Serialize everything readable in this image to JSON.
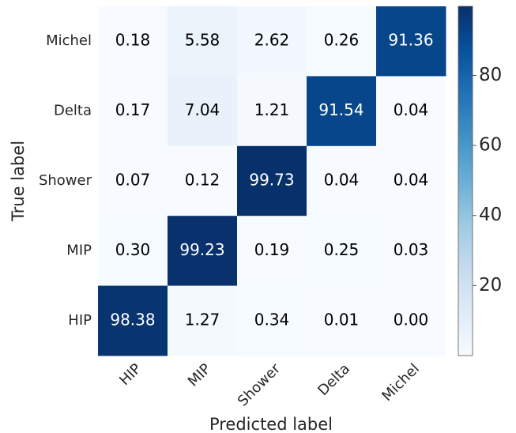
{
  "chart_data": {
    "type": "heatmap",
    "xlabel": "Predicted label",
    "ylabel": "True label",
    "x_categories": [
      "HIP",
      "MIP",
      "Shower",
      "Delta",
      "Michel"
    ],
    "y_categories": [
      "Michel",
      "Delta",
      "Shower",
      "MIP",
      "HIP"
    ],
    "values": [
      [
        0.18,
        5.58,
        2.62,
        0.26,
        91.36
      ],
      [
        0.17,
        7.04,
        1.21,
        91.54,
        0.04
      ],
      [
        0.07,
        0.12,
        99.73,
        0.04,
        0.04
      ],
      [
        0.3,
        99.23,
        0.19,
        0.25,
        0.03
      ],
      [
        98.38,
        1.27,
        0.34,
        0.01,
        0.0
      ]
    ],
    "value_labels": [
      [
        "0.18",
        "5.58",
        "2.62",
        "0.26",
        "91.36"
      ],
      [
        "0.17",
        "7.04",
        "1.21",
        "91.54",
        "0.04"
      ],
      [
        "0.07",
        "0.12",
        "99.73",
        "0.04",
        "0.04"
      ],
      [
        "0.30",
        "99.23",
        "0.19",
        "0.25",
        "0.03"
      ],
      [
        "98.38",
        "1.27",
        "0.34",
        "0.01",
        "0.00"
      ]
    ],
    "colormap": "Blues",
    "zlim": [
      0,
      99.73
    ],
    "zticks": [
      20,
      40,
      60,
      80
    ]
  }
}
